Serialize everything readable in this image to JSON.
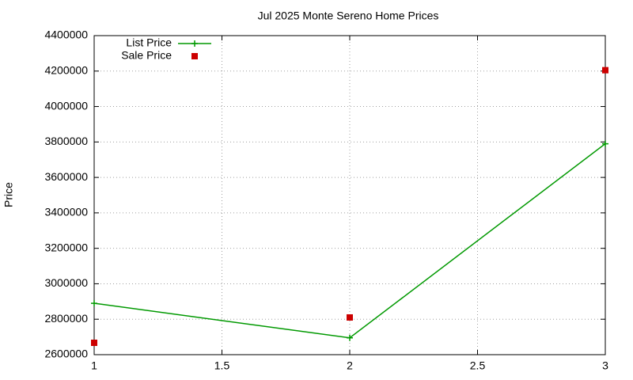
{
  "chart_data": {
    "type": "line",
    "title": "Jul 2025 Monte Sereno Home Prices",
    "y_label": "Price",
    "x": [
      1,
      2,
      3
    ],
    "series": [
      {
        "name": "List Price",
        "color": "#009900",
        "mode": "lines+markers",
        "marker": "plus",
        "values": [
          2890000,
          2695000,
          3790000
        ]
      },
      {
        "name": "Sale Price",
        "color": "#cc0000",
        "mode": "markers",
        "marker": "square",
        "values": [
          2667000,
          2810000,
          4205000
        ]
      }
    ],
    "xlim": [
      1,
      3
    ],
    "xticks": [
      1,
      1.5,
      2,
      2.5,
      3
    ],
    "ylim": [
      2600000,
      4400000
    ],
    "yticks": [
      2600000,
      2800000,
      3000000,
      3200000,
      3400000,
      3600000,
      3800000,
      4000000,
      4200000,
      4400000
    ],
    "grid": true,
    "legend": "top-left"
  }
}
